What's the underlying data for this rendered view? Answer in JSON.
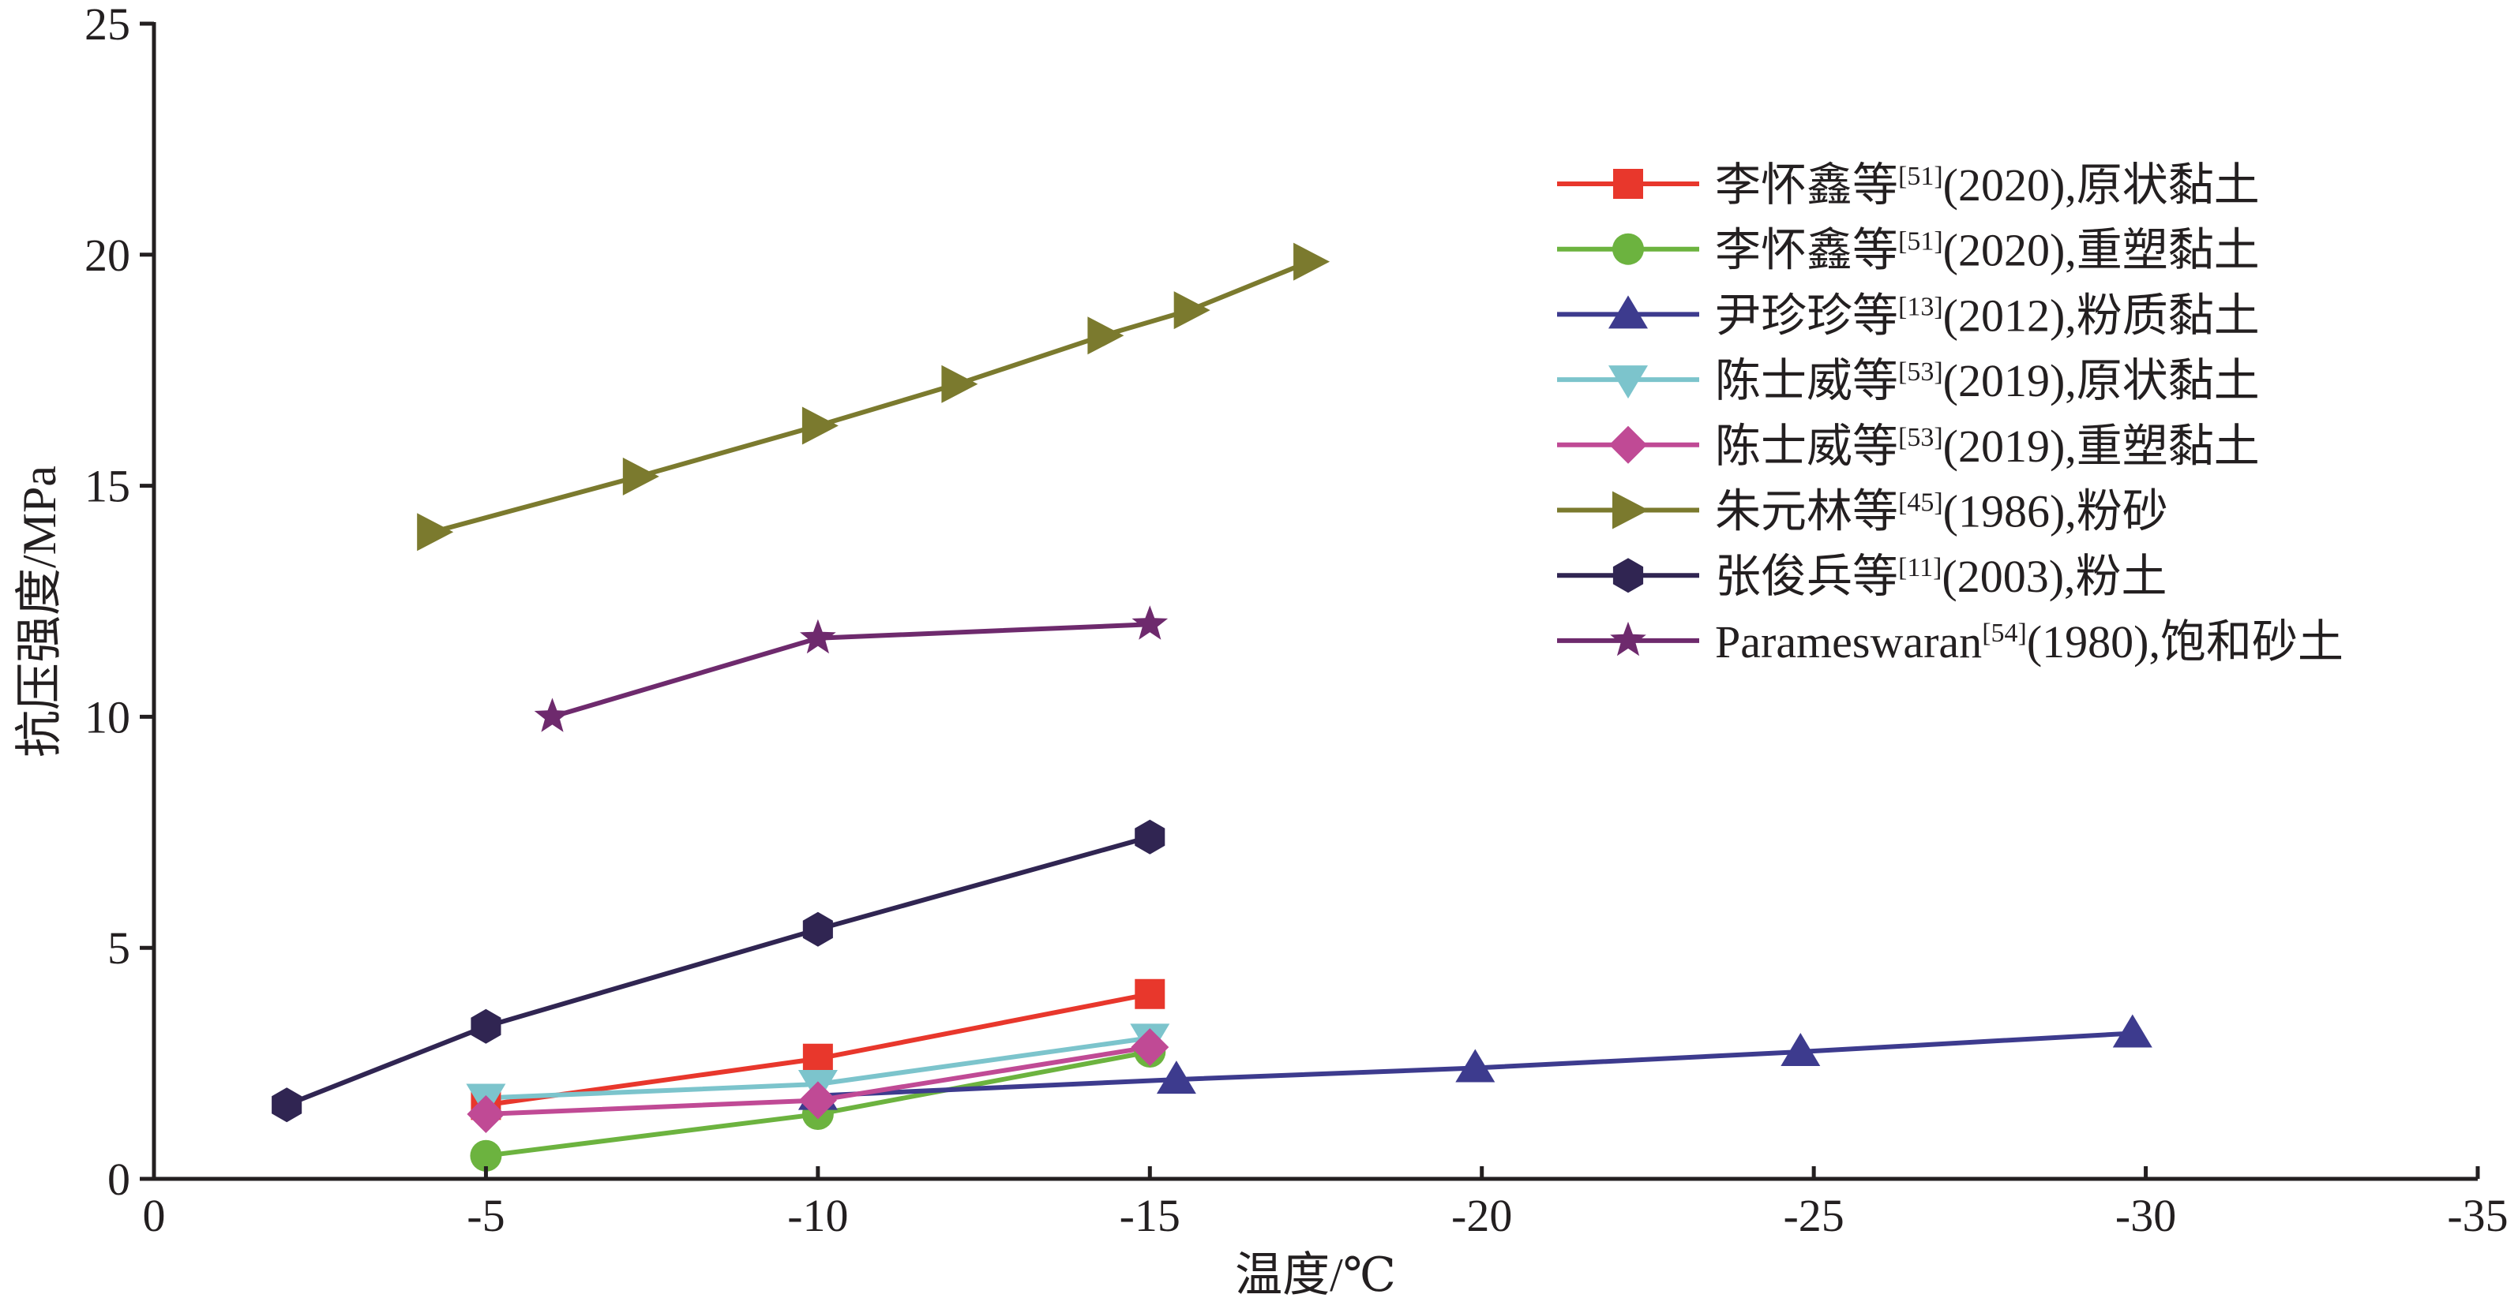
{
  "chart_data": {
    "type": "line",
    "xlabel": "温度/℃",
    "ylabel": "抗压强度/MPa",
    "xlim": [
      0,
      -35
    ],
    "ylim": [
      0,
      25
    ],
    "x_ticks": [
      0,
      -5,
      -10,
      -15,
      -20,
      -25,
      -30,
      -35
    ],
    "y_ticks": [
      0,
      5,
      10,
      15,
      20,
      25
    ],
    "x_tick_labels": [
      "0",
      "-5",
      "-10",
      "-15",
      "-20",
      "-25",
      "-30",
      "-35"
    ],
    "y_tick_labels": [
      "0",
      "5",
      "10",
      "15",
      "20",
      "25"
    ],
    "grid": false,
    "legend_position": "right",
    "series": [
      {
        "name_main": "李怀鑫等",
        "name_sup": "[51]",
        "name_rest": "(2020),原状黏土",
        "color": "#e8372c",
        "marker": "square",
        "x": [
          -5,
          -10,
          -15
        ],
        "y": [
          1.6,
          2.6,
          4.0
        ]
      },
      {
        "name_main": "李怀鑫等",
        "name_sup": "[51]",
        "name_rest": "(2020),重塑黏土",
        "color": "#6cb33f",
        "marker": "circle",
        "x": [
          -5,
          -10,
          -15
        ],
        "y": [
          0.5,
          1.4,
          2.75
        ]
      },
      {
        "name_main": "尹珍珍等",
        "name_sup": "[13]",
        "name_rest": "(2012),粉质黏土",
        "color": "#3d3b8e",
        "marker": "triangle-up",
        "x": [
          -10,
          -15.4,
          -19.9,
          -24.8,
          -29.8
        ],
        "y": [
          1.8,
          2.15,
          2.4,
          2.75,
          3.15
        ]
      },
      {
        "name_main": "陈士威等",
        "name_sup": "[53]",
        "name_rest": "(2019),原状黏土",
        "color": "#7cc4cc",
        "marker": "triangle-down",
        "x": [
          -5,
          -10,
          -15
        ],
        "y": [
          1.75,
          2.05,
          3.05
        ]
      },
      {
        "name_main": "陈士威等",
        "name_sup": "[53]",
        "name_rest": "(2019),重塑黏土",
        "color": "#c04a95",
        "marker": "diamond",
        "x": [
          -5,
          -10,
          -15
        ],
        "y": [
          1.4,
          1.7,
          2.85
        ]
      },
      {
        "name_main": "朱元林等",
        "name_sup": "[45]",
        "name_rest": "(1986),粉砂",
        "color": "#7b7a2e",
        "marker": "triangle-right",
        "x": [
          -4.2,
          -7.3,
          -10,
          -12.1,
          -14.3,
          -15.6,
          -17.4
        ],
        "y": [
          14.0,
          15.2,
          16.3,
          17.2,
          18.25,
          18.8,
          19.85
        ]
      },
      {
        "name_main": "张俊兵等",
        "name_sup": "[11]",
        "name_rest": "(2003),粉土",
        "color": "#302552",
        "marker": "hexagon",
        "x": [
          -2,
          -5,
          -10,
          -15
        ],
        "y": [
          1.6,
          3.3,
          5.4,
          7.4
        ]
      },
      {
        "name_main": "Parameswaran",
        "name_sup": "[54]",
        "name_rest": "(1980),饱和砂土",
        "color": "#6e2a6d",
        "marker": "star",
        "x": [
          -6,
          -10,
          -15
        ],
        "y": [
          10.0,
          11.7,
          12.0
        ]
      }
    ]
  }
}
